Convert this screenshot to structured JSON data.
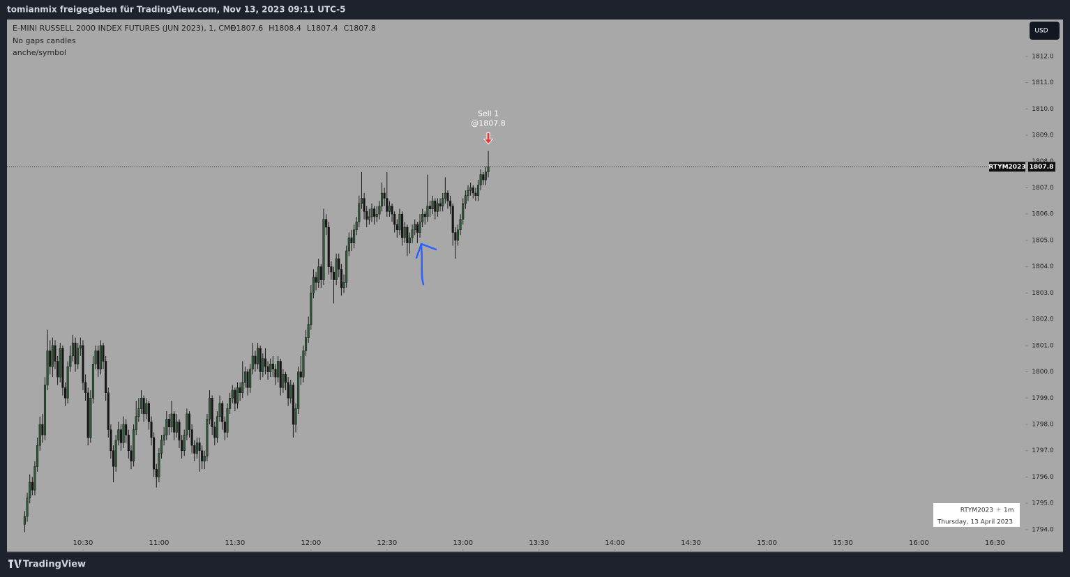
{
  "header": "tomianmix freigegeben für TradingView.com, Nov 13, 2023 09:11 UTC-5",
  "footer": "TradingView",
  "chart_data": {
    "type": "candlestick",
    "title": "E-MINI RUSSELL 2000 INDEX FUTURES (JUN 2023), 1, CME",
    "ohlc_legend": [
      "O1807.6",
      "H1808.4",
      "L1807.4",
      "C1807.8"
    ],
    "indicators": [
      "No gaps candles",
      "anche/symbol"
    ],
    "currency": "USD",
    "symbol": "RTYM2023",
    "last_price_label": "1807.8",
    "watermark": {
      "symbol": "RTYM2023",
      "interval": "1m",
      "date": "Thursday, 13 April 2023"
    },
    "annotation": {
      "text": "Sell 1",
      "price_label": "@1807.8"
    },
    "up_color": "#2f5a36",
    "down_color": "#161616",
    "wick_color": "#161616",
    "xlim": [
      "10:00",
      "16:42"
    ],
    "xticks": [
      "10:30",
      "11:00",
      "11:30",
      "12:00",
      "12:30",
      "13:00",
      "13:30",
      "14:00",
      "14:30",
      "15:00",
      "15:30",
      "16:00",
      "16:30"
    ],
    "ylim": [
      1793.15,
      1813.4
    ],
    "yticks": [
      {
        "value": 1794,
        "label": "1794.0"
      },
      {
        "value": 1795,
        "label": "1795.0"
      },
      {
        "value": 1796,
        "label": "1796.0"
      },
      {
        "value": 1797,
        "label": "1797.0"
      },
      {
        "value": 1798,
        "label": "1798.0"
      },
      {
        "value": 1799,
        "label": "1799.0"
      },
      {
        "value": 1800,
        "label": "1800.0"
      },
      {
        "value": 1801,
        "label": "1801.0"
      },
      {
        "value": 1802,
        "label": "1802.0"
      },
      {
        "value": 1803,
        "label": "1803.0"
      },
      {
        "value": 1804,
        "label": "1804.0"
      },
      {
        "value": 1805,
        "label": "1805.0"
      },
      {
        "value": 1806,
        "label": "1806.0"
      },
      {
        "value": 1807,
        "label": "1807.0"
      },
      {
        "value": 1808,
        "label": "1808.0"
      },
      {
        "value": 1809,
        "label": "1809.0"
      },
      {
        "value": 1810,
        "label": "1810.0"
      },
      {
        "value": 1811,
        "label": "1811.0"
      },
      {
        "value": 1812,
        "label": "1812.0"
      }
    ],
    "x": [
      "10:07",
      "10:08",
      "10:09",
      "10:10",
      "10:11",
      "10:12",
      "10:13",
      "10:14",
      "10:15",
      "10:16",
      "10:17",
      "10:18",
      "10:19",
      "10:20",
      "10:21",
      "10:22",
      "10:23",
      "10:24",
      "10:25",
      "10:26",
      "10:27",
      "10:28",
      "10:29",
      "10:30",
      "10:31",
      "10:32",
      "10:33",
      "10:34",
      "10:35",
      "10:36",
      "10:37",
      "10:38",
      "10:39",
      "10:40",
      "10:41",
      "10:42",
      "10:43",
      "10:44",
      "10:45",
      "10:46",
      "10:47",
      "10:48",
      "10:49",
      "10:50",
      "10:51",
      "10:52",
      "10:53",
      "10:54",
      "10:55",
      "10:56",
      "10:57",
      "10:58",
      "10:59",
      "11:00",
      "11:01",
      "11:02",
      "11:03",
      "11:04",
      "11:05",
      "11:06",
      "11:07",
      "11:08",
      "11:09",
      "11:10",
      "11:11",
      "11:12",
      "11:13",
      "11:14",
      "11:15",
      "11:16",
      "11:17",
      "11:18",
      "11:19",
      "11:20",
      "11:21",
      "11:22",
      "11:23",
      "11:24",
      "11:25",
      "11:26",
      "11:27",
      "11:28",
      "11:29",
      "11:30",
      "11:31",
      "11:32",
      "11:33",
      "11:34",
      "11:35",
      "11:36",
      "11:37",
      "11:38",
      "11:39",
      "11:40",
      "11:41",
      "11:42",
      "11:43",
      "11:44",
      "11:45",
      "11:46",
      "11:47",
      "11:48",
      "11:49",
      "11:50",
      "11:51",
      "11:52",
      "11:53",
      "11:54",
      "11:55",
      "11:56",
      "11:57",
      "11:58",
      "11:59",
      "12:00",
      "12:01",
      "12:02",
      "12:03",
      "12:04",
      "12:05",
      "12:06",
      "12:07",
      "12:08",
      "12:09",
      "12:10",
      "12:11",
      "12:12",
      "12:13",
      "12:14",
      "12:15",
      "12:16",
      "12:17",
      "12:18",
      "12:19",
      "12:20",
      "12:21",
      "12:22",
      "12:23",
      "12:24",
      "12:25",
      "12:26",
      "12:27",
      "12:28",
      "12:29",
      "12:30",
      "12:31",
      "12:32",
      "12:33",
      "12:34",
      "12:35",
      "12:36",
      "12:37",
      "12:38",
      "12:39",
      "12:40",
      "12:41",
      "12:42",
      "12:43",
      "12:44",
      "12:45",
      "12:46",
      "12:47",
      "12:48",
      "12:49",
      "12:50",
      "12:51",
      "12:52",
      "12:53",
      "12:54",
      "12:55",
      "12:56",
      "12:57",
      "12:58",
      "12:59",
      "13:00",
      "13:01",
      "13:02",
      "13:03",
      "13:04",
      "13:05",
      "13:06",
      "13:07",
      "13:08",
      "13:09",
      "13:10"
    ],
    "candles": [
      [
        1794.2,
        1794.7,
        1793.9,
        1794.5
      ],
      [
        1794.5,
        1795.4,
        1794.3,
        1795.2
      ],
      [
        1795.2,
        1796.1,
        1795.0,
        1795.8
      ],
      [
        1795.8,
        1796.0,
        1795.3,
        1795.5
      ],
      [
        1795.5,
        1796.6,
        1795.3,
        1796.4
      ],
      [
        1796.4,
        1797.5,
        1796.2,
        1797.2
      ],
      [
        1797.2,
        1798.3,
        1797.0,
        1798.0
      ],
      [
        1798.0,
        1798.4,
        1797.3,
        1797.6
      ],
      [
        1797.6,
        1799.8,
        1797.4,
        1799.5
      ],
      [
        1799.5,
        1801.6,
        1799.3,
        1800.8
      ],
      [
        1800.8,
        1801.2,
        1799.9,
        1800.2
      ],
      [
        1800.2,
        1801.3,
        1799.8,
        1801.0
      ],
      [
        1801.0,
        1801.2,
        1800.1,
        1800.4
      ],
      [
        1800.4,
        1800.6,
        1799.5,
        1799.8
      ],
      [
        1799.8,
        1801.1,
        1799.6,
        1800.9
      ],
      [
        1800.9,
        1801.0,
        1799.1,
        1799.4
      ],
      [
        1799.4,
        1799.6,
        1798.7,
        1799.0
      ],
      [
        1799.0,
        1800.4,
        1798.8,
        1800.2
      ],
      [
        1800.2,
        1801.0,
        1800.0,
        1800.6
      ],
      [
        1800.6,
        1801.4,
        1800.4,
        1801.1
      ],
      [
        1801.1,
        1801.3,
        1800.0,
        1800.3
      ],
      [
        1800.3,
        1801.1,
        1800.1,
        1800.9
      ],
      [
        1800.9,
        1801.3,
        1800.6,
        1801.0
      ],
      [
        1801.0,
        1801.2,
        1799.3,
        1799.6
      ],
      [
        1799.6,
        1799.9,
        1798.9,
        1799.2
      ],
      [
        1799.2,
        1799.4,
        1797.2,
        1797.5
      ],
      [
        1797.5,
        1799.3,
        1797.3,
        1799.0
      ],
      [
        1799.0,
        1800.6,
        1798.8,
        1800.3
      ],
      [
        1800.3,
        1801.0,
        1800.1,
        1800.8
      ],
      [
        1800.8,
        1801.0,
        1799.8,
        1800.1
      ],
      [
        1800.1,
        1801.2,
        1799.9,
        1801.0
      ],
      [
        1801.0,
        1801.1,
        1800.1,
        1800.4
      ],
      [
        1800.4,
        1800.6,
        1798.9,
        1799.2
      ],
      [
        1799.2,
        1799.4,
        1797.5,
        1797.8
      ],
      [
        1797.8,
        1798.0,
        1796.7,
        1797.0
      ],
      [
        1797.0,
        1797.2,
        1795.8,
        1796.4
      ],
      [
        1796.4,
        1797.6,
        1796.2,
        1797.4
      ],
      [
        1797.4,
        1798.1,
        1797.2,
        1797.8
      ],
      [
        1797.8,
        1798.0,
        1797.0,
        1797.3
      ],
      [
        1797.3,
        1798.3,
        1797.1,
        1798.0
      ],
      [
        1798.0,
        1798.2,
        1797.3,
        1797.6
      ],
      [
        1797.6,
        1797.8,
        1796.7,
        1797.0
      ],
      [
        1797.0,
        1797.2,
        1796.3,
        1796.6
      ],
      [
        1796.6,
        1798.0,
        1796.4,
        1797.8
      ],
      [
        1797.8,
        1798.9,
        1797.6,
        1798.3
      ],
      [
        1798.3,
        1799.0,
        1798.1,
        1798.6
      ],
      [
        1798.6,
        1799.3,
        1798.4,
        1799.0
      ],
      [
        1799.0,
        1799.1,
        1798.1,
        1798.4
      ],
      [
        1798.4,
        1799.0,
        1798.2,
        1798.8
      ],
      [
        1798.8,
        1798.9,
        1797.8,
        1798.1
      ],
      [
        1798.1,
        1798.3,
        1797.2,
        1797.5
      ],
      [
        1797.5,
        1797.7,
        1796.0,
        1796.3
      ],
      [
        1796.3,
        1796.5,
        1795.6,
        1796.0
      ],
      [
        1796.0,
        1797.1,
        1795.8,
        1796.9
      ],
      [
        1796.9,
        1797.6,
        1796.7,
        1797.4
      ],
      [
        1797.4,
        1797.9,
        1797.2,
        1797.6
      ],
      [
        1797.6,
        1798.5,
        1797.4,
        1798.2
      ],
      [
        1798.2,
        1798.4,
        1797.6,
        1797.9
      ],
      [
        1797.9,
        1798.9,
        1797.7,
        1798.4
      ],
      [
        1798.4,
        1798.5,
        1797.4,
        1797.7
      ],
      [
        1797.7,
        1798.4,
        1797.5,
        1798.1
      ],
      [
        1798.1,
        1798.2,
        1797.1,
        1797.4
      ],
      [
        1797.4,
        1797.6,
        1796.7,
        1797.0
      ],
      [
        1797.0,
        1797.8,
        1796.8,
        1797.6
      ],
      [
        1797.6,
        1798.6,
        1797.4,
        1798.4
      ],
      [
        1798.4,
        1798.5,
        1797.5,
        1797.8
      ],
      [
        1797.8,
        1798.0,
        1796.9,
        1797.2
      ],
      [
        1797.2,
        1797.4,
        1796.6,
        1796.9
      ],
      [
        1796.9,
        1797.5,
        1796.7,
        1797.3
      ],
      [
        1797.3,
        1797.5,
        1796.2,
        1797.0
      ],
      [
        1797.0,
        1797.2,
        1796.3,
        1796.6
      ],
      [
        1796.6,
        1797.0,
        1796.3,
        1796.8
      ],
      [
        1796.8,
        1798.4,
        1796.6,
        1798.2
      ],
      [
        1798.2,
        1799.3,
        1798.0,
        1799.0
      ],
      [
        1799.0,
        1799.1,
        1797.6,
        1797.9
      ],
      [
        1797.9,
        1798.1,
        1797.2,
        1797.5
      ],
      [
        1797.5,
        1798.5,
        1797.3,
        1798.3
      ],
      [
        1798.3,
        1799.1,
        1798.1,
        1798.8
      ],
      [
        1798.8,
        1798.9,
        1797.8,
        1798.1
      ],
      [
        1798.1,
        1798.3,
        1797.4,
        1797.7
      ],
      [
        1797.7,
        1798.8,
        1797.5,
        1798.6
      ],
      [
        1798.6,
        1799.2,
        1798.4,
        1799.0
      ],
      [
        1799.0,
        1799.5,
        1798.8,
        1799.3
      ],
      [
        1799.3,
        1799.4,
        1798.5,
        1798.8
      ],
      [
        1798.8,
        1799.6,
        1798.6,
        1799.4
      ],
      [
        1799.4,
        1799.6,
        1798.9,
        1799.2
      ],
      [
        1799.2,
        1800.4,
        1799.0,
        1799.6
      ],
      [
        1799.6,
        1800.2,
        1799.4,
        1800.0
      ],
      [
        1800.0,
        1800.1,
        1799.1,
        1799.4
      ],
      [
        1799.4,
        1800.3,
        1799.2,
        1800.1
      ],
      [
        1800.1,
        1801.1,
        1799.9,
        1800.6
      ],
      [
        1800.6,
        1800.8,
        1800.0,
        1800.3
      ],
      [
        1800.3,
        1801.1,
        1800.1,
        1800.9
      ],
      [
        1800.9,
        1801.0,
        1799.7,
        1800.0
      ],
      [
        1800.0,
        1800.7,
        1799.8,
        1800.5
      ],
      [
        1800.5,
        1800.9,
        1799.9,
        1800.2
      ],
      [
        1800.2,
        1800.4,
        1799.7,
        1800.0
      ],
      [
        1800.0,
        1800.5,
        1799.8,
        1800.3
      ],
      [
        1800.3,
        1800.6,
        1799.8,
        1800.1
      ],
      [
        1800.1,
        1800.3,
        1799.5,
        1799.8
      ],
      [
        1799.8,
        1800.6,
        1799.6,
        1800.4
      ],
      [
        1800.4,
        1800.5,
        1799.1,
        1799.4
      ],
      [
        1799.4,
        1800.1,
        1799.2,
        1799.9
      ],
      [
        1799.9,
        1800.0,
        1799.3,
        1799.6
      ],
      [
        1799.6,
        1799.8,
        1798.7,
        1799.0
      ],
      [
        1799.0,
        1799.7,
        1798.8,
        1799.5
      ],
      [
        1799.5,
        1799.6,
        1797.5,
        1798.0
      ],
      [
        1798.0,
        1798.8,
        1797.7,
        1798.6
      ],
      [
        1798.6,
        1800.2,
        1798.4,
        1800.0
      ],
      [
        1800.0,
        1800.6,
        1799.5,
        1799.8
      ],
      [
        1799.8,
        1801.0,
        1799.6,
        1800.8
      ],
      [
        1800.8,
        1801.6,
        1800.6,
        1801.3
      ],
      [
        1801.3,
        1802.1,
        1801.1,
        1801.8
      ],
      [
        1801.8,
        1803.3,
        1801.6,
        1803.0
      ],
      [
        1803.0,
        1803.9,
        1802.8,
        1803.6
      ],
      [
        1803.6,
        1803.8,
        1803.1,
        1803.4
      ],
      [
        1803.4,
        1804.3,
        1803.2,
        1804.0
      ],
      [
        1804.0,
        1804.1,
        1803.2,
        1803.5
      ],
      [
        1803.5,
        1806.2,
        1803.3,
        1805.8
      ],
      [
        1805.8,
        1806.0,
        1805.2,
        1805.5
      ],
      [
        1805.5,
        1805.7,
        1803.7,
        1804.0
      ],
      [
        1804.0,
        1804.2,
        1803.5,
        1803.8
      ],
      [
        1803.8,
        1804.0,
        1802.6,
        1803.5
      ],
      [
        1803.5,
        1804.5,
        1803.3,
        1804.3
      ],
      [
        1804.3,
        1804.5,
        1803.6,
        1803.9
      ],
      [
        1803.9,
        1804.1,
        1802.9,
        1803.2
      ],
      [
        1803.2,
        1803.7,
        1803.0,
        1803.4
      ],
      [
        1803.4,
        1804.8,
        1803.2,
        1804.6
      ],
      [
        1804.6,
        1805.3,
        1804.4,
        1805.1
      ],
      [
        1805.1,
        1805.4,
        1804.6,
        1804.9
      ],
      [
        1804.9,
        1805.6,
        1804.7,
        1805.4
      ],
      [
        1805.4,
        1805.9,
        1805.2,
        1805.7
      ],
      [
        1805.7,
        1806.7,
        1805.5,
        1806.4
      ],
      [
        1806.4,
        1807.6,
        1806.2,
        1806.6
      ],
      [
        1806.6,
        1806.8,
        1805.8,
        1806.1
      ],
      [
        1806.1,
        1806.3,
        1805.5,
        1805.8
      ],
      [
        1805.8,
        1806.2,
        1805.6,
        1805.9
      ],
      [
        1805.9,
        1806.4,
        1805.7,
        1806.2
      ],
      [
        1806.2,
        1806.3,
        1805.6,
        1805.9
      ],
      [
        1805.9,
        1806.3,
        1805.7,
        1806.0
      ],
      [
        1806.0,
        1806.5,
        1805.8,
        1806.3
      ],
      [
        1806.3,
        1807.2,
        1806.1,
        1806.8
      ],
      [
        1806.8,
        1807.0,
        1806.3,
        1806.6
      ],
      [
        1806.6,
        1807.6,
        1805.9,
        1806.1
      ],
      [
        1806.1,
        1806.5,
        1805.9,
        1806.3
      ],
      [
        1806.3,
        1806.4,
        1805.7,
        1806.0
      ],
      [
        1806.0,
        1806.1,
        1805.3,
        1805.6
      ],
      [
        1805.6,
        1805.8,
        1805.1,
        1805.4
      ],
      [
        1805.4,
        1806.2,
        1805.2,
        1806.0
      ],
      [
        1806.0,
        1806.1,
        1804.8,
        1805.1
      ],
      [
        1805.1,
        1805.7,
        1804.9,
        1805.5
      ],
      [
        1805.5,
        1805.6,
        1804.4,
        1804.9
      ],
      [
        1804.9,
        1805.3,
        1804.5,
        1805.1
      ],
      [
        1805.1,
        1805.6,
        1804.9,
        1805.4
      ],
      [
        1805.4,
        1805.8,
        1805.2,
        1805.6
      ],
      [
        1805.6,
        1805.7,
        1804.9,
        1805.3
      ],
      [
        1805.3,
        1806.0,
        1805.1,
        1805.7
      ],
      [
        1805.7,
        1806.2,
        1805.5,
        1806.0
      ],
      [
        1806.0,
        1806.1,
        1805.6,
        1805.9
      ],
      [
        1805.9,
        1807.5,
        1805.7,
        1806.3
      ],
      [
        1806.3,
        1806.5,
        1805.9,
        1806.2
      ],
      [
        1806.2,
        1806.7,
        1806.0,
        1806.5
      ],
      [
        1806.5,
        1806.6,
        1805.8,
        1806.1
      ],
      [
        1806.1,
        1806.6,
        1805.9,
        1806.4
      ],
      [
        1806.4,
        1806.6,
        1806.1,
        1806.3
      ],
      [
        1806.3,
        1806.8,
        1806.1,
        1806.6
      ],
      [
        1806.6,
        1807.4,
        1806.4,
        1806.8
      ],
      [
        1806.8,
        1806.9,
        1806.2,
        1806.5
      ],
      [
        1806.5,
        1806.7,
        1806.0,
        1806.3
      ],
      [
        1806.3,
        1806.4,
        1804.8,
        1805.3
      ],
      [
        1805.3,
        1805.5,
        1804.3,
        1805.0
      ],
      [
        1805.0,
        1805.6,
        1804.8,
        1805.4
      ],
      [
        1805.4,
        1806.0,
        1805.2,
        1805.8
      ],
      [
        1805.8,
        1806.6,
        1805.6,
        1806.4
      ],
      [
        1806.4,
        1806.9,
        1806.2,
        1806.7
      ],
      [
        1806.7,
        1807.1,
        1806.5,
        1806.9
      ],
      [
        1806.9,
        1807.2,
        1806.7,
        1807.0
      ],
      [
        1807.0,
        1807.1,
        1806.6,
        1806.8
      ],
      [
        1806.8,
        1807.0,
        1806.5,
        1806.7
      ],
      [
        1806.7,
        1807.3,
        1806.5,
        1807.1
      ],
      [
        1807.1,
        1807.7,
        1806.9,
        1807.5
      ],
      [
        1807.5,
        1807.6,
        1807.1,
        1807.3
      ],
      [
        1807.3,
        1807.8,
        1807.1,
        1807.6
      ],
      [
        1807.6,
        1808.4,
        1807.4,
        1807.8
      ]
    ]
  }
}
